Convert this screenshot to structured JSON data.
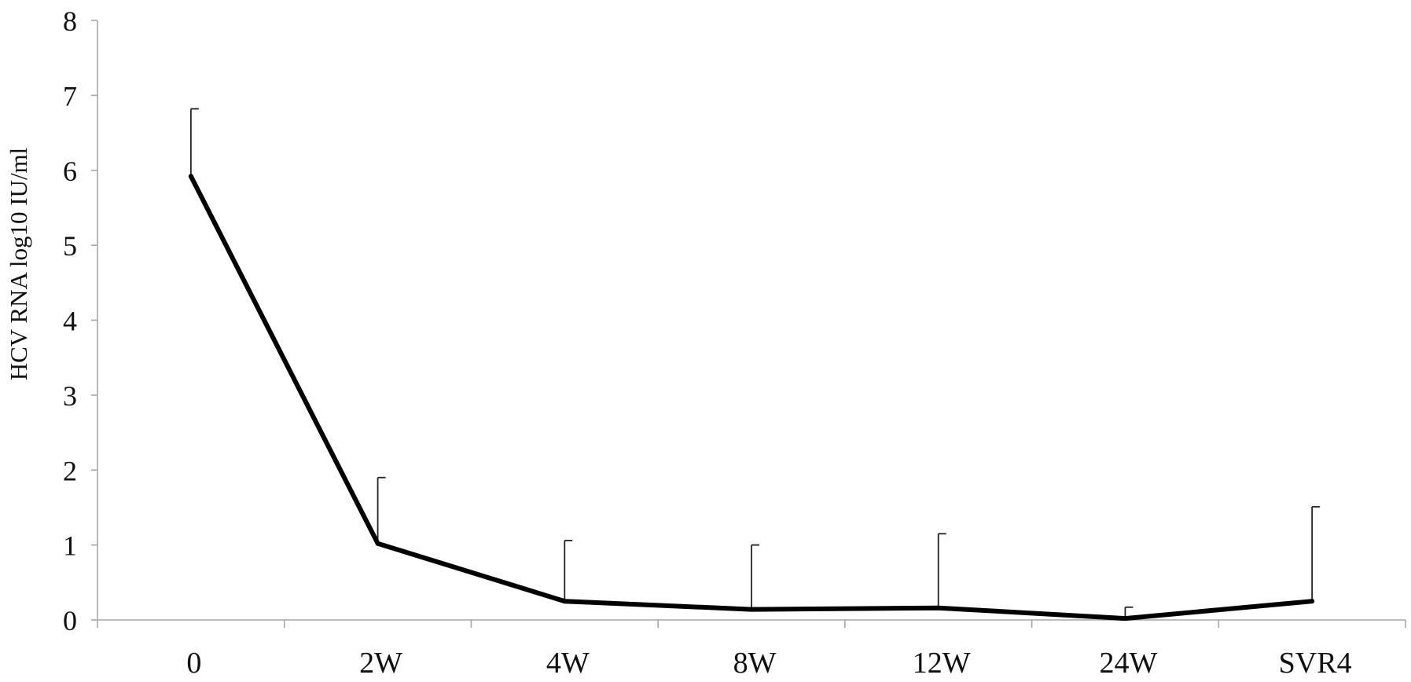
{
  "chart_data": {
    "type": "line",
    "title": "",
    "xlabel": "",
    "ylabel": "HCV RNA log10 IU/ml",
    "categories": [
      "0",
      "2W",
      "4W",
      "8W",
      "12W",
      "24W",
      "SVR4"
    ],
    "series": [
      {
        "values": [
          5.92,
          1.02,
          0.25,
          0.14,
          0.16,
          0.02,
          0.25
        ],
        "error_upper": [
          6.82,
          1.9,
          1.06,
          1.0,
          1.15,
          0.17,
          1.51
        ]
      }
    ],
    "ylim": [
      0,
      8
    ],
    "yticks": [
      0,
      1,
      2,
      3,
      4,
      5,
      6,
      7,
      8
    ],
    "grid": false,
    "legend": "none",
    "colors": {
      "line": "#000000",
      "axis": "#a6a6a6",
      "error_bar": "#222222"
    }
  }
}
